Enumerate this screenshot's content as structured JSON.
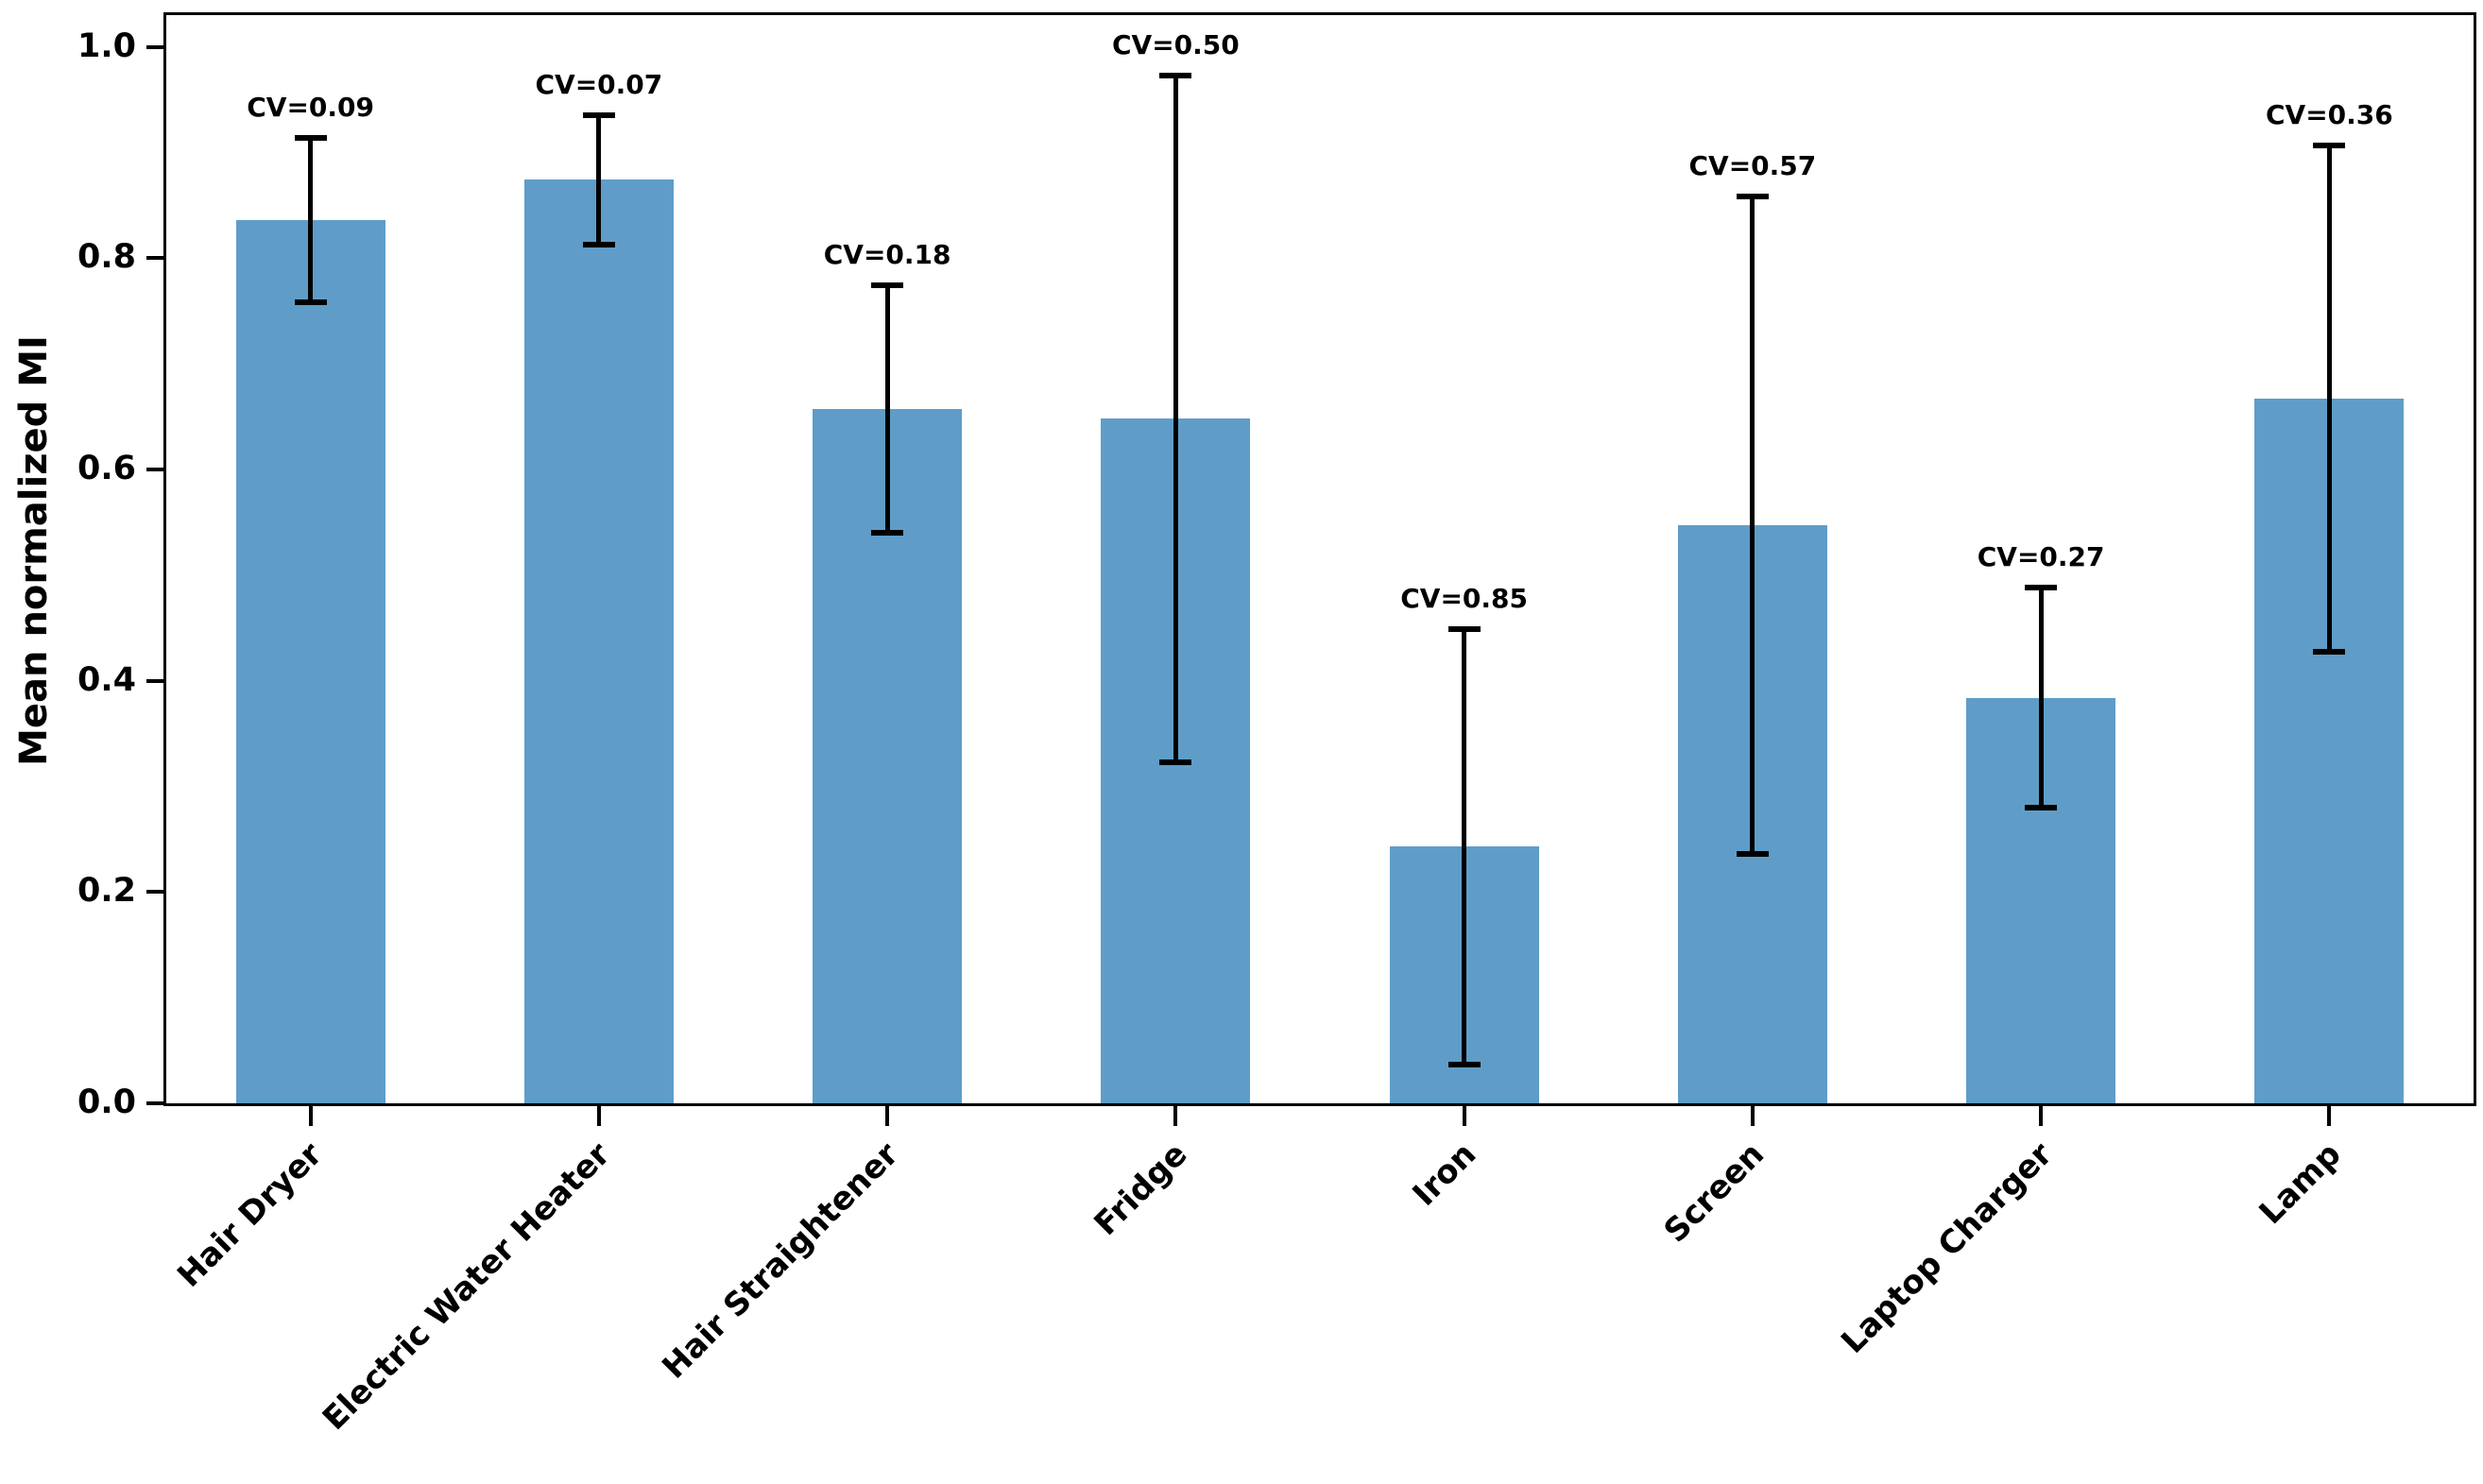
{
  "chart_data": {
    "type": "bar",
    "title": "",
    "xlabel": "",
    "ylabel": "Mean normalized MI",
    "ylim": [
      0,
      1.03
    ],
    "yticks": [
      "0.0",
      "0.2",
      "0.4",
      "0.6",
      "0.8",
      "1.0"
    ],
    "grid": false,
    "legend": false,
    "bar_color": "#5f9dc8",
    "error_color": "#000000",
    "categories": [
      "Hair Dryer",
      "Electric Water Heater",
      "Hair Straightener",
      "Fridge",
      "Iron",
      "Screen",
      "Laptop Charger",
      "Lamp"
    ],
    "values": [
      0.836,
      0.874,
      0.657,
      0.648,
      0.243,
      0.547,
      0.384,
      0.667
    ],
    "errors": [
      0.078,
      0.061,
      0.117,
      0.325,
      0.206,
      0.311,
      0.104,
      0.24
    ],
    "annotations": [
      "CV=0.09",
      "CV=0.07",
      "CV=0.18",
      "CV=0.50",
      "CV=0.85",
      "CV=0.57",
      "CV=0.27",
      "CV=0.36"
    ]
  }
}
